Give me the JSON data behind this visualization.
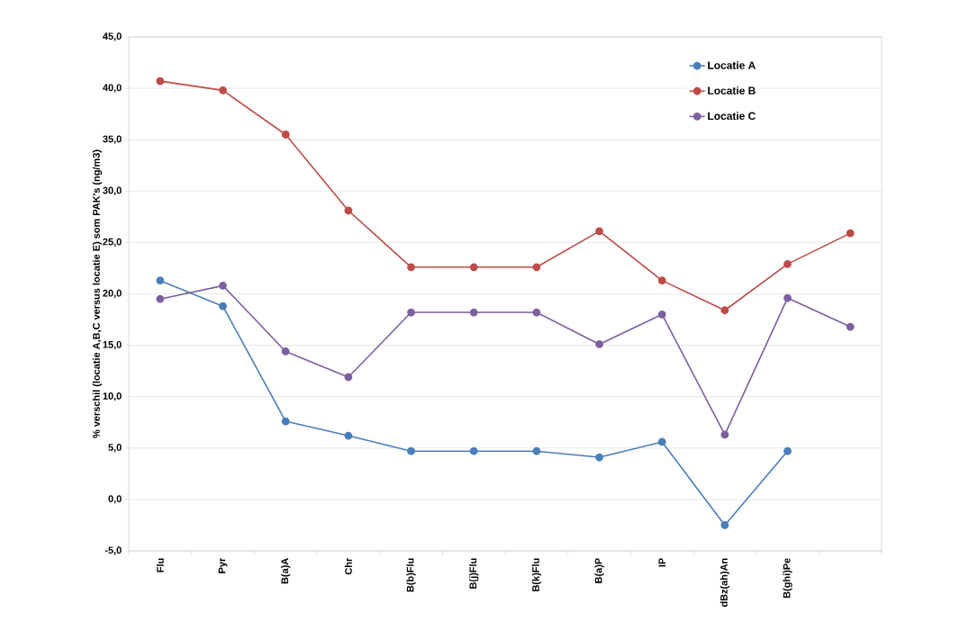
{
  "chart_data": {
    "type": "line",
    "ylabel": "% verschil (locatie A,B,C  versus locatie E) som PAK's  (ng/m3)",
    "categories": [
      "Flu",
      "Pyr",
      "B(a)A",
      "Chr",
      "B(b)Flu",
      "B(j)Flu",
      "B(k)Flu",
      "B(a)P",
      "IP",
      "dBz(ah)An",
      "B(ghi)Pe",
      null
    ],
    "series": [
      {
        "name": "Locatie A",
        "color": "#4a7ebb",
        "values": [
          21.3,
          18.8,
          7.6,
          6.2,
          4.7,
          4.7,
          4.7,
          4.1,
          5.6,
          -2.5,
          4.7,
          null
        ]
      },
      {
        "name": "Locatie B",
        "color": "#be4b48",
        "values": [
          40.7,
          39.8,
          35.5,
          28.1,
          22.6,
          22.6,
          22.6,
          26.1,
          21.3,
          18.4,
          22.9,
          25.9
        ]
      },
      {
        "name": "Locatie C",
        "color": "#7d60a0",
        "values": [
          19.5,
          20.8,
          14.4,
          11.9,
          18.2,
          18.2,
          18.2,
          15.1,
          18.0,
          6.3,
          19.6,
          16.8
        ]
      }
    ],
    "ylim": [
      -5,
      45
    ],
    "yticks": [
      {
        "value": -5,
        "label": "-5,0"
      },
      {
        "value": 0,
        "label": "0,0"
      },
      {
        "value": 5,
        "label": "5,0"
      },
      {
        "value": 10,
        "label": "10,0"
      },
      {
        "value": 15,
        "label": "15,0"
      },
      {
        "value": 20,
        "label": "20,0"
      },
      {
        "value": 25,
        "label": "25,0"
      },
      {
        "value": 30,
        "label": "30,0"
      },
      {
        "value": 35,
        "label": "35,0"
      },
      {
        "value": 40,
        "label": "40,0"
      },
      {
        "value": 45,
        "label": "45,0"
      }
    ],
    "grid": "y",
    "legend": "top right",
    "marker": "circle",
    "line_style": "solid"
  }
}
